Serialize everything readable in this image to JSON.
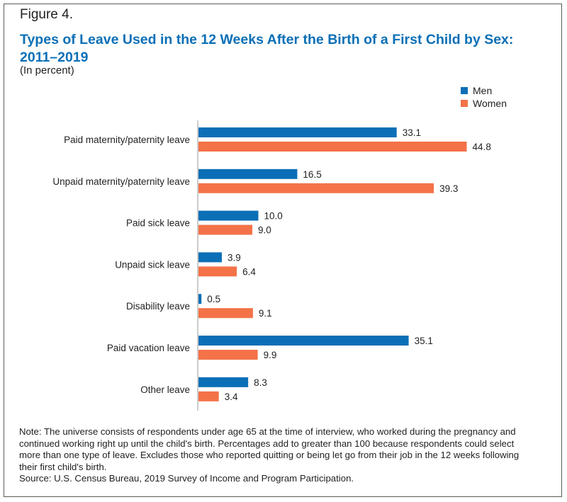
{
  "figure_label": "Figure 4.",
  "note": "Note: The universe consists of respondents under age 65 at the time of interview, who worked during the pregnancy and continued working right up until the child's birth. Percentages add to greater than 100 because respondents could select more than one type of leave. Excludes those who reported quitting or being let go from their job in the 12 weeks following their first child's birth.",
  "source": "Source: U.S. Census Bureau, 2019 Survey of Income and Program Participation.",
  "chart_data": {
    "type": "bar",
    "orientation": "horizontal",
    "title": "Types of Leave Used in the 12 Weeks After the Birth of a First Child by Sex: 2011–2019",
    "subtitle": "(In percent)",
    "categories": [
      "Paid maternity/paternity leave",
      "Unpaid maternity/paternity leave",
      "Paid sick leave",
      "Unpaid sick leave",
      "Disability leave",
      "Paid vacation leave",
      "Other leave"
    ],
    "series": [
      {
        "name": "Men",
        "color": "#0a6fb6",
        "values": [
          33.1,
          16.5,
          10.0,
          3.9,
          0.5,
          35.1,
          8.3
        ]
      },
      {
        "name": "Women",
        "color": "#f47248",
        "values": [
          44.8,
          39.3,
          9.0,
          6.4,
          9.1,
          9.9,
          3.4
        ]
      }
    ],
    "value_labels": {
      "Men": [
        "33.1",
        "16.5",
        "10.0",
        "3.9",
        "0.5",
        "35.1",
        "8.3"
      ],
      "Women": [
        "44.8",
        "39.3",
        "9.0",
        "6.4",
        "9.1",
        "9.9",
        "3.4"
      ]
    },
    "xlim": [
      0,
      50
    ],
    "grid": false,
    "legend_position": "top-right"
  }
}
